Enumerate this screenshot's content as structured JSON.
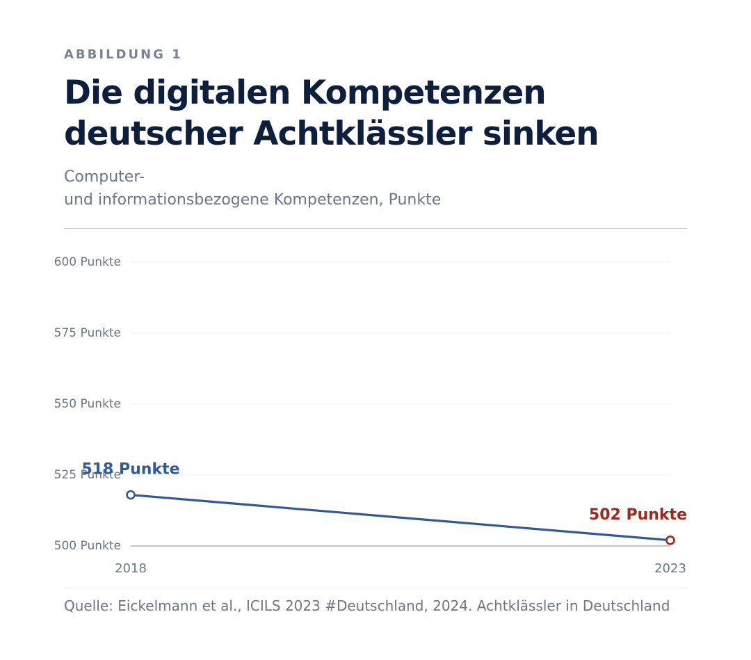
{
  "header": {
    "kicker": "ABBILDUNG 1",
    "title_lines": [
      "Die digitalen Kompetenzen",
      "deutscher Achtklässler sinken"
    ],
    "subtitle_lines": [
      "Computer-",
      "und informationsbezogene Kompetenzen, Punkte"
    ]
  },
  "chart_data": {
    "type": "line",
    "title": "Die digitalen Kompetenzen deutscher Achtklässler sinken",
    "subtitle": "Computer- und informationsbezogene Kompetenzen, Punkte",
    "x": [
      "2018",
      "2023"
    ],
    "series": [
      {
        "values": [
          518,
          502
        ],
        "color": "#2e5a9a"
      }
    ],
    "ylim": [
      500,
      600
    ],
    "yticks": [
      600,
      575,
      550,
      525,
      500
    ],
    "ytick_labels": [
      "600 Punkte",
      "575 Punkte",
      "550 Punkte",
      "525 Punkte",
      "500 Punkte"
    ],
    "xtick_labels": [
      "2018",
      "2023"
    ],
    "annotations": [
      {
        "x": "2018",
        "value": 518,
        "text": "518 Punkte",
        "color": "#2e5a9a"
      },
      {
        "x": "2023",
        "value": 502,
        "text": "502 Punkte",
        "color": "#a1271f"
      }
    ],
    "grid": true,
    "legend": false
  },
  "footer": {
    "source": "Quelle: Eickelmann et al., ICILS 2023 #Deutschland, 2024. Achtklässler in Deutschland"
  }
}
